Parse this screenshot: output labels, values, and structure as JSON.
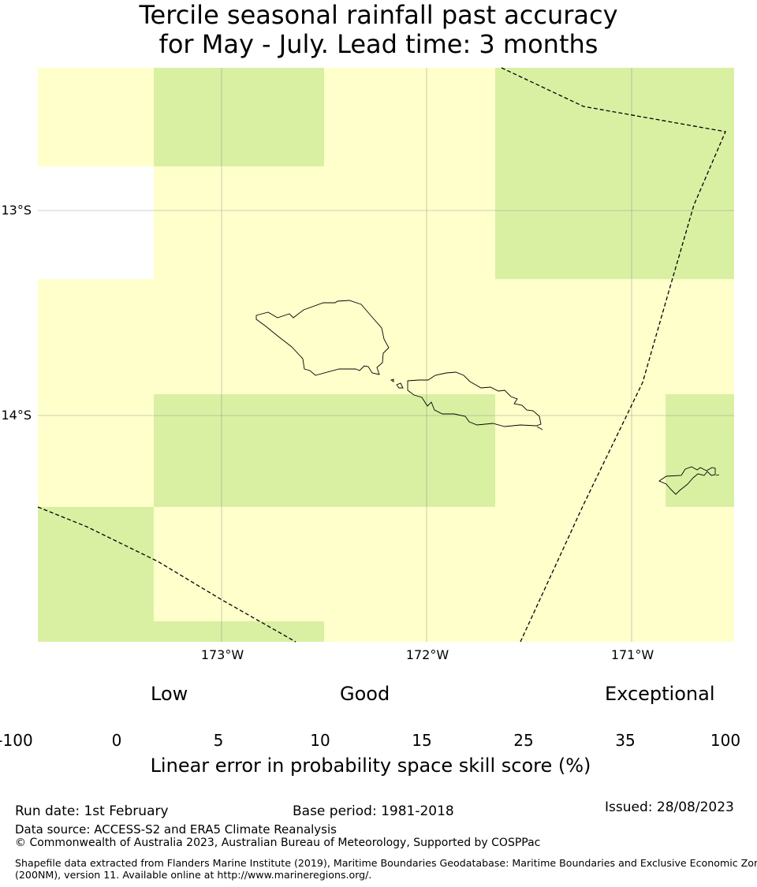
{
  "title": {
    "line1": "Tercile seasonal rainfall past accuracy",
    "line2": "for May - July. Lead time: 3 months"
  },
  "map": {
    "lat_labels": [
      "13°S",
      "14°S"
    ],
    "lon_labels": [
      "173°W",
      "172°W",
      "171°W"
    ],
    "colors": {
      "low_0_5": "#ffffcc",
      "band_5_10": "#d9f0a3",
      "band_10_15": "#addd8e",
      "band_15_25": "#78c679",
      "band_25_35": "#41ab5d",
      "band_35_100": "#238443",
      "missing": "#ffffff"
    }
  },
  "colorbar": {
    "categories": [
      "Low",
      "Good",
      "Exceptional"
    ],
    "ticks": [
      "-100",
      "0",
      "5",
      "10",
      "15",
      "25",
      "35",
      "100"
    ],
    "colors": [
      "#ffffff",
      "#ffffcc",
      "#d9f0a3",
      "#addd8e",
      "#78c679",
      "#41ab5d",
      "#238443"
    ],
    "axis_label": "Linear error in probability space skill score (%)"
  },
  "footer": {
    "run_date": "Run date: 1st February",
    "base_period": "Base period: 1981-2018",
    "issued": "Issued: 28/08/2023",
    "data_source": "Data source: ACCESS-S2 and ERA5 Climate Reanalysis",
    "copyright": "© Commonwealth of Australia 2023, Australian Bureau of Meteorology, Supported by COSPPac",
    "shapefile_line1": "Shapefile data extracted from Flanders Marine Institute (2019), Maritime Boundaries Geodatabase: Maritime Boundaries and Exclusive Economic Zones",
    "shapefile_line2": "(200NM), version 11. Available online at http://www.marineregions.org/."
  }
}
